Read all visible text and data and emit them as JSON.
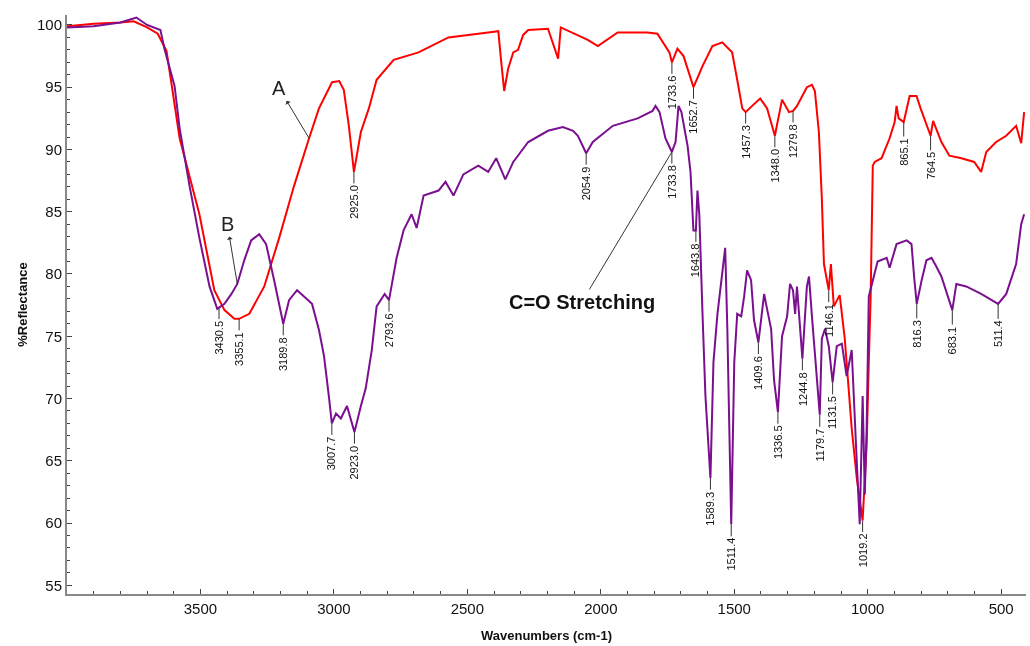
{
  "chart_data": {
    "type": "line",
    "xlabel": "Wavenumbers (cm-1)",
    "ylabel": "%Reflectance",
    "xlim": [
      4000,
      407
    ],
    "ylim": [
      54.3,
      100.8
    ],
    "xticks": [
      3500,
      3000,
      2500,
      2000,
      1500,
      1000,
      500
    ],
    "yticks": [
      55,
      60,
      65,
      70,
      75,
      80,
      85,
      90,
      95,
      100
    ],
    "marker": "none",
    "line_style": "solid",
    "series": [
      {
        "name": "A",
        "color": "#ff0000",
        "x": [
          4000,
          3900,
          3800,
          3750,
          3700,
          3660,
          3627,
          3578,
          3504,
          3448,
          3410,
          3373,
          3355.1,
          3317,
          3261,
          3205,
          3149,
          3093,
          3056,
          3007,
          2980,
          2963,
          2944,
          2925,
          2899,
          2869,
          2840,
          2776,
          2683,
          2571,
          2422,
          2384,
          2373,
          2362,
          2347,
          2328,
          2310,
          2291,
          2272,
          2198,
          2160,
          2150,
          2049,
          2011,
          1937,
          1825,
          1788,
          1743,
          1733.6,
          1713,
          1690,
          1652.7,
          1619,
          1582,
          1545,
          1508,
          1489,
          1470,
          1457.3,
          1433,
          1403,
          1377,
          1348,
          1321,
          1295,
          1279.8,
          1265,
          1228,
          1209,
          1198,
          1183,
          1172,
          1164,
          1146.1,
          1138,
          1127,
          1105,
          1086,
          1060,
          1041,
          1019.2,
          1004,
          996,
          989,
          981,
          974,
          948,
          918,
          899,
          892,
          884,
          865.1,
          843,
          817,
          802,
          764.5,
          755,
          724,
          694,
          649,
          601,
          575,
          556,
          519,
          481,
          444,
          425,
          414
        ],
        "values": [
          99.9,
          100.1,
          100.2,
          100.3,
          99.8,
          99.3,
          97.9,
          90.9,
          84.8,
          78.7,
          77.1,
          76.4,
          76.4,
          76.8,
          79.0,
          82.9,
          87.1,
          90.9,
          93.3,
          95.4,
          95.5,
          94.8,
          91.9,
          88.2,
          91.4,
          93.3,
          95.6,
          97.2,
          97.8,
          99.0,
          99.4,
          99.5,
          97.0,
          94.7,
          96.5,
          97.8,
          98.0,
          99.2,
          99.6,
          99.7,
          97.3,
          99.8,
          98.8,
          98.3,
          99.4,
          99.4,
          99.3,
          97.8,
          97.0,
          98.1,
          97.5,
          95.0,
          96.7,
          98.3,
          98.6,
          97.8,
          95.6,
          93.3,
          93.0,
          93.5,
          94.1,
          93.3,
          91.1,
          94.0,
          93.0,
          93.1,
          93.5,
          95.0,
          95.2,
          94.7,
          91.4,
          86.1,
          80.8,
          78.7,
          80.8,
          77.4,
          78.3,
          74.8,
          67.6,
          63.6,
          60.2,
          66.3,
          72.9,
          78.2,
          88.7,
          89.0,
          89.3,
          90.9,
          92.2,
          93.5,
          92.5,
          92.2,
          94.3,
          94.3,
          93.3,
          91.1,
          92.3,
          90.6,
          89.5,
          89.3,
          89.0,
          88.2,
          89.8,
          90.6,
          91.1,
          91.9,
          90.5,
          93.0
        ]
      },
      {
        "name": "B",
        "color": "#7a1090",
        "x": [
          4000,
          3900,
          3800,
          3740,
          3700,
          3650,
          3634,
          3597,
          3578,
          3541,
          3504,
          3466,
          3437,
          3430.5,
          3410,
          3384,
          3362,
          3336,
          3310,
          3280,
          3254,
          3224,
          3189.8,
          3168,
          3138,
          3112,
          3082,
          3056,
          3037,
          3019,
          3007.7,
          2992,
          2974,
          2951,
          2923,
          2899,
          2881,
          2858,
          2840,
          2810,
          2793.6,
          2765,
          2739,
          2709,
          2690,
          2664,
          2608,
          2582,
          2552,
          2515,
          2459,
          2422,
          2392,
          2358,
          2328,
          2272,
          2198,
          2142,
          2104,
          2086,
          2054.9,
          2030,
          1955,
          1862,
          1806,
          1795,
          1780,
          1758,
          1733.8,
          1720,
          1709,
          1698,
          1675,
          1664,
          1653,
          1643.8,
          1638,
          1631,
          1619,
          1608,
          1589.3,
          1578,
          1563,
          1534,
          1526,
          1511.4,
          1500,
          1489,
          1474,
          1463,
          1452,
          1437,
          1426,
          1409.6,
          1388,
          1381,
          1362,
          1351,
          1336.5,
          1321,
          1302,
          1291,
          1280,
          1272,
          1265,
          1244.8,
          1228,
          1220,
          1209,
          1179.7,
          1172,
          1160,
          1146,
          1131.5,
          1116,
          1097,
          1079,
          1060,
          1041,
          1030,
          1019,
          1011,
          1004,
          996,
          963,
          929,
          918,
          892,
          854,
          836,
          825,
          816.3,
          798,
          780,
          761,
          743,
          724,
          683.1,
          668,
          631,
          575,
          511.4,
          481,
          444,
          425,
          414
        ],
        "values": [
          99.8,
          99.9,
          100.2,
          100.6,
          100.0,
          99.6,
          98.0,
          95.1,
          91.7,
          87.1,
          82.9,
          79.0,
          77.2,
          77.3,
          77.6,
          78.4,
          79.2,
          81.1,
          82.7,
          83.2,
          82.4,
          79.5,
          76.0,
          77.9,
          78.7,
          78.2,
          77.6,
          75.5,
          73.4,
          70.2,
          68.0,
          68.8,
          68.4,
          69.4,
          67.3,
          69.4,
          70.8,
          73.9,
          77.4,
          78.4,
          77.9,
          81.3,
          83.5,
          84.8,
          83.7,
          86.3,
          86.7,
          87.4,
          86.3,
          88.0,
          88.7,
          88.2,
          89.3,
          87.6,
          89.0,
          90.6,
          91.5,
          91.8,
          91.5,
          91.1,
          89.7,
          90.6,
          91.9,
          92.5,
          93.1,
          93.5,
          93.0,
          90.9,
          89.8,
          90.6,
          93.5,
          93.0,
          90.3,
          88.2,
          83.5,
          83.5,
          86.7,
          84.8,
          76.8,
          70.2,
          63.6,
          72.9,
          76.8,
          82.1,
          75.6,
          59.9,
          72.9,
          76.8,
          76.6,
          78.2,
          80.3,
          79.5,
          76.3,
          74.5,
          78.4,
          77.6,
          75.6,
          71.5,
          68.9,
          75.0,
          76.6,
          79.2,
          78.7,
          76.8,
          79.0,
          73.2,
          79.0,
          79.8,
          76.6,
          68.7,
          74.8,
          75.6,
          74.2,
          71.3,
          74.2,
          74.4,
          71.8,
          73.9,
          64.9,
          59.9,
          70.2,
          62.3,
          67.6,
          78.2,
          81.0,
          81.3,
          80.5,
          82.4,
          82.7,
          82.4,
          79.5,
          77.6,
          79.5,
          81.1,
          81.3,
          80.6,
          79.8,
          77.1,
          79.2,
          79.0,
          78.4,
          77.6,
          78.4,
          80.8,
          84.0,
          84.8
        ]
      }
    ],
    "annotations": [
      {
        "text": "3355.1",
        "x": 3355.1,
        "y": 76.4
      },
      {
        "text": "2925.0",
        "x": 2925,
        "y": 88.2
      },
      {
        "text": "1733.6",
        "x": 1733.6,
        "y": 97.0
      },
      {
        "text": "1652.7",
        "x": 1652.7,
        "y": 95.0
      },
      {
        "text": "1457.3",
        "x": 1457.3,
        "y": 93.0
      },
      {
        "text": "1348.0",
        "x": 1348,
        "y": 91.1
      },
      {
        "text": "1279.8",
        "x": 1279.8,
        "y": 93.1
      },
      {
        "text": "1146.1",
        "x": 1146.1,
        "y": 78.7
      },
      {
        "text": "1019.2",
        "x": 1019.2,
        "y": 60.2
      },
      {
        "text": "865.1",
        "x": 865.1,
        "y": 92.2
      },
      {
        "text": "764.5",
        "x": 764.5,
        "y": 91.1
      },
      {
        "text": "3430.5",
        "x": 3430.5,
        "y": 77.3
      },
      {
        "text": "3189.8",
        "x": 3189.8,
        "y": 76.0
      },
      {
        "text": "3007.7",
        "x": 3007.7,
        "y": 68.0
      },
      {
        "text": "2923.0",
        "x": 2923,
        "y": 67.3
      },
      {
        "text": "2793.6",
        "x": 2793.6,
        "y": 77.9
      },
      {
        "text": "2054.9",
        "x": 2054.9,
        "y": 89.7
      },
      {
        "text": "1733.8",
        "x": 1733.8,
        "y": 89.8
      },
      {
        "text": "1643.8",
        "x": 1643.8,
        "y": 83.5
      },
      {
        "text": "1589.3",
        "x": 1589.3,
        "y": 63.6
      },
      {
        "text": "1511.4",
        "x": 1511.4,
        "y": 59.9
      },
      {
        "text": "1409.6",
        "x": 1409.6,
        "y": 74.5
      },
      {
        "text": "1336.5",
        "x": 1336.5,
        "y": 68.9
      },
      {
        "text": "1244.8",
        "x": 1244.8,
        "y": 73.2
      },
      {
        "text": "1179.7",
        "x": 1179.7,
        "y": 68.7
      },
      {
        "text": "1131.5",
        "x": 1131.5,
        "y": 71.3
      },
      {
        "text": "816.3",
        "x": 816.3,
        "y": 77.6
      },
      {
        "text": "683.1",
        "x": 683.1,
        "y": 77.1
      },
      {
        "text": "511.4",
        "x": 511.4,
        "y": 77.6
      },
      {
        "text": "C=O Stretching",
        "x": 1733.8,
        "y": 89.8
      }
    ]
  }
}
